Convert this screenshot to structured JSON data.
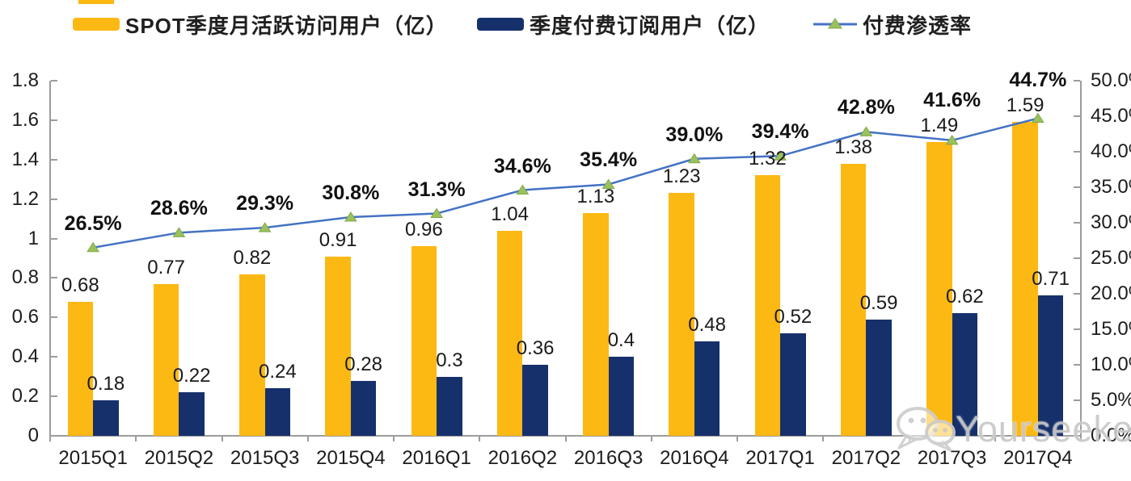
{
  "legend": {
    "items": [
      {
        "label": "SPOT季度月活跃访问用户（亿）",
        "color": "#FCB813",
        "type": "bar"
      },
      {
        "label": "季度付费订阅用户（亿）",
        "color": "#16306B",
        "type": "bar"
      },
      {
        "label": "付费渗透率",
        "color": "#4472C4",
        "marker_color": "#9BC15C",
        "type": "line"
      }
    ]
  },
  "chart_data": {
    "type": "bar+line",
    "categories": [
      "2015Q1",
      "2015Q2",
      "2015Q3",
      "2015Q4",
      "2016Q1",
      "2016Q2",
      "2016Q3",
      "2016Q4",
      "2017Q1",
      "2017Q2",
      "2017Q3",
      "2017Q4"
    ],
    "series": [
      {
        "name": "SPOT季度月活跃访问用户（亿）",
        "type": "bar",
        "axis": "left",
        "color": "#FCB813",
        "values": [
          0.68,
          0.77,
          0.82,
          0.91,
          0.96,
          1.04,
          1.13,
          1.23,
          1.32,
          1.38,
          1.49,
          1.59
        ],
        "labels": [
          "0.68",
          "0.77",
          "0.82",
          "0.91",
          "0.96",
          "1.04",
          "1.13",
          "1.23",
          "1.32",
          "1.38",
          "1.49",
          "1.59"
        ]
      },
      {
        "name": "季度付费订阅用户（亿）",
        "type": "bar",
        "axis": "left",
        "color": "#16306B",
        "values": [
          0.18,
          0.22,
          0.24,
          0.28,
          0.3,
          0.36,
          0.4,
          0.48,
          0.52,
          0.59,
          0.62,
          0.71
        ],
        "labels": [
          "0.18",
          "0.22",
          "0.24",
          "0.28",
          "0.3",
          "0.36",
          "0.4",
          "0.48",
          "0.52",
          "0.59",
          "0.62",
          "0.71"
        ]
      },
      {
        "name": "付费渗透率",
        "type": "line",
        "axis": "right",
        "color": "#4472C4",
        "marker": "triangle",
        "marker_color": "#9BC15C",
        "marker_edge_color": "#7FA84B",
        "values": [
          26.5,
          28.6,
          29.3,
          30.8,
          31.3,
          34.6,
          35.4,
          39.0,
          39.4,
          42.8,
          41.6,
          44.7
        ],
        "labels": [
          "26.5%",
          "28.6%",
          "29.3%",
          "30.8%",
          "31.3%",
          "34.6%",
          "35.4%",
          "39.0%",
          "39.4%",
          "42.8%",
          "41.6%",
          "44.7%"
        ]
      }
    ],
    "left_axis": {
      "min": 0,
      "max": 1.8,
      "ticks": [
        "1.8",
        "1.6",
        "1.4",
        "1.2",
        "1",
        "0.8",
        "0.6",
        "0.4",
        "0.2",
        "0"
      ]
    },
    "right_axis": {
      "min": 0,
      "max": 50,
      "ticks": [
        "50.0%",
        "45.0%",
        "40.0%",
        "35.0%",
        "30.0%",
        "25.0%",
        "20.0%",
        "15.0%",
        "10.0%",
        "5.0%",
        "0.0%"
      ]
    },
    "grid": "off",
    "legend_position": "top"
  },
  "watermark": {
    "text": "Yourseeker",
    "icon": "wechat-icon"
  }
}
